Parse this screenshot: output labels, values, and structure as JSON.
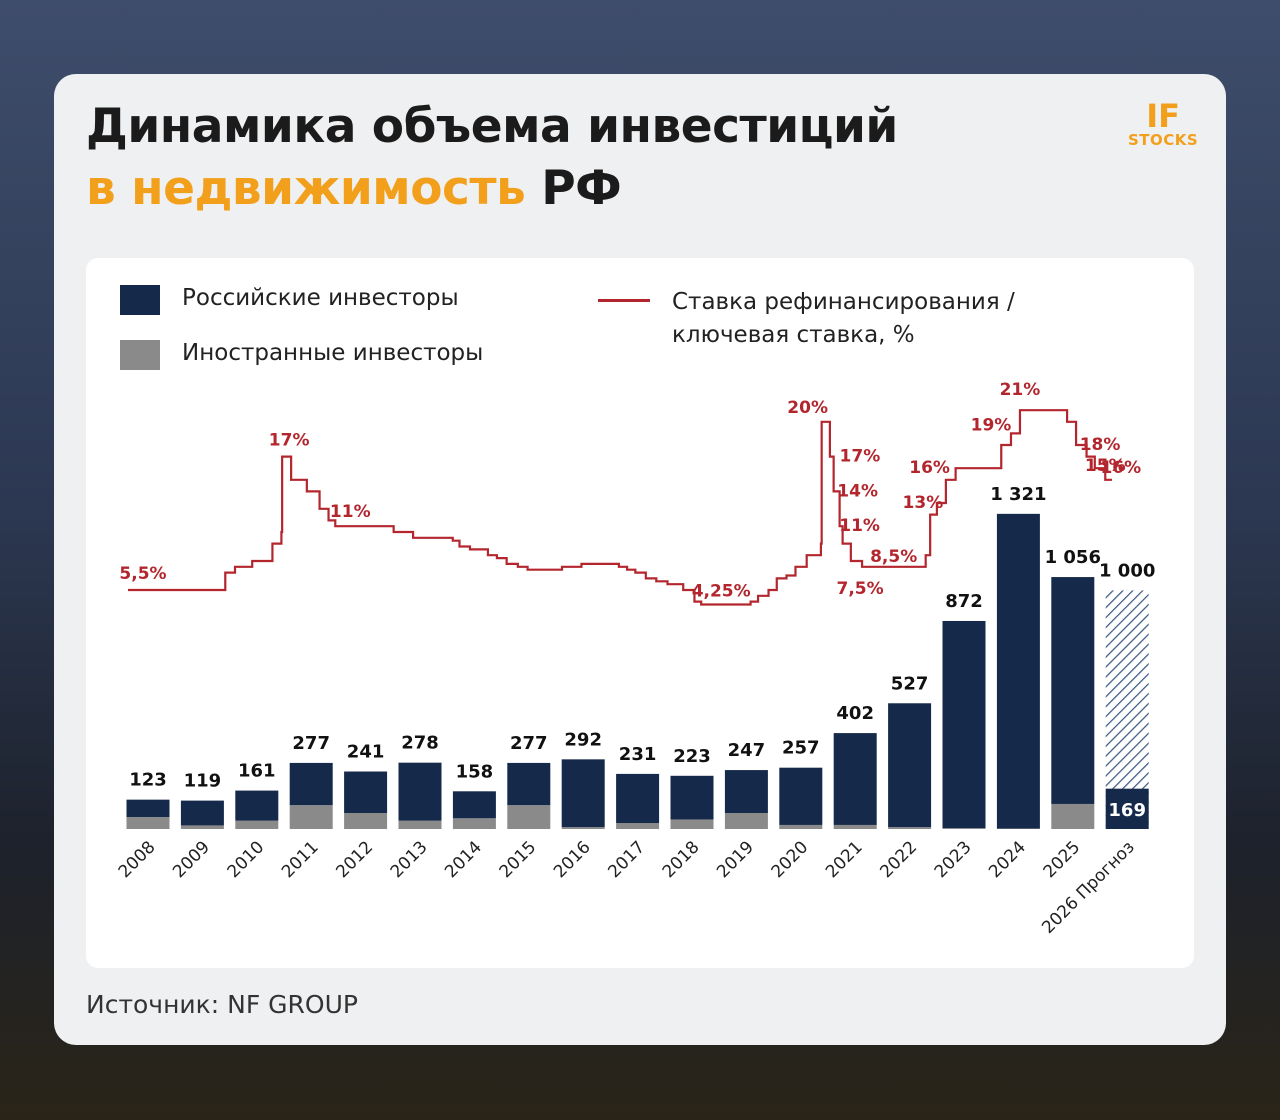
{
  "header": {
    "title_line1": "Динамика объема инвестиций",
    "title_accent": "в недвижимость",
    "title_rest": "РФ",
    "logo_top": "IF",
    "logo_bottom": "STOCKS"
  },
  "footer": {
    "source": "Источник: NF GROUP"
  },
  "chart_data": {
    "type": "bar+line",
    "categories": [
      "2008",
      "2009",
      "2010",
      "2011",
      "2012",
      "2013",
      "2014",
      "2015",
      "2016",
      "2017",
      "2018",
      "2019",
      "2020",
      "2021",
      "2022",
      "2023",
      "2024",
      "2025",
      "2026 Прогноз"
    ],
    "totals": [
      123,
      119,
      161,
      277,
      241,
      278,
      158,
      277,
      292,
      231,
      223,
      247,
      257,
      402,
      527,
      872,
      1321,
      1056,
      1000
    ],
    "value_labels": [
      "123",
      "119",
      "161",
      "277",
      "241",
      "278",
      "158",
      "277",
      "292",
      "231",
      "223",
      "247",
      "257",
      "402",
      "527",
      "872",
      "1 321",
      "1 056",
      "1 000"
    ],
    "hatch_color": "#3d5a85",
    "series": [
      {
        "name": "Российские инвесторы",
        "color": "#15294a",
        "values": [
          73,
          104,
          126,
          177,
          174,
          243,
          113,
          177,
          284,
          206,
          183,
          180,
          240,
          385,
          519,
          868,
          1319,
          951,
          169
        ]
      },
      {
        "name": "Иностранные инвесторы",
        "color": "#8a8a8a",
        "values": [
          50,
          15,
          35,
          100,
          67,
          35,
          45,
          100,
          8,
          25,
          40,
          67,
          17,
          17,
          8,
          4,
          2,
          105,
          null
        ]
      }
    ],
    "ylim": [
      0,
      1400
    ],
    "rate": {
      "name": "Ставка рефинансирования / ключевая ставка, %",
      "color": "#b3262d",
      "axis": "y2",
      "x": [
        2012.9,
        2014.2,
        2014.33,
        2014.56,
        2014.83,
        2014.95,
        2014.96,
        2015.08,
        2015.29,
        2015.46,
        2015.58,
        2015.67,
        2016.45,
        2016.71,
        2017.24,
        2017.33,
        2017.47,
        2017.71,
        2017.83,
        2017.96,
        2018.11,
        2018.24,
        2018.7,
        2018.96,
        2019.46,
        2019.57,
        2019.68,
        2019.82,
        2019.96,
        2020.11,
        2020.32,
        2020.47,
        2020.56,
        2021.22,
        2021.32,
        2021.46,
        2021.57,
        2021.7,
        2021.82,
        2021.97,
        2022.16,
        2022.17,
        2022.28,
        2022.33,
        2022.41,
        2022.45,
        2022.56,
        2022.71,
        2023.56,
        2023.62,
        2023.71,
        2023.83,
        2023.96,
        2024.57,
        2024.7,
        2024.82,
        2025.45,
        2025.57,
        2025.71,
        2025.82,
        2025.96
      ],
      "values": [
        5.5,
        7,
        7.5,
        8,
        9.5,
        10.5,
        17,
        15,
        14,
        12.5,
        11.5,
        11,
        10.5,
        10,
        9.75,
        9.25,
        9,
        8.5,
        8.25,
        7.75,
        7.5,
        7.25,
        7.5,
        7.75,
        7.5,
        7.25,
        7,
        6.5,
        6.25,
        6,
        5.5,
        4.5,
        4.25,
        4.5,
        5,
        5.5,
        6.5,
        6.75,
        7.5,
        8.5,
        9.5,
        20,
        17,
        14,
        11,
        9.5,
        8,
        7.5,
        8.5,
        12,
        13,
        15,
        16,
        18,
        19,
        21,
        20,
        18,
        17,
        16,
        15
      ],
      "value_labels": [
        "5,5%",
        null,
        null,
        null,
        null,
        null,
        "17%",
        null,
        null,
        null,
        null,
        "11%",
        null,
        null,
        null,
        null,
        null,
        null,
        null,
        null,
        null,
        null,
        null,
        null,
        null,
        null,
        null,
        null,
        null,
        null,
        null,
        null,
        "4,25%",
        null,
        null,
        null,
        null,
        null,
        null,
        null,
        null,
        "20%",
        "17%",
        "14%",
        "11%",
        null,
        null,
        "7,5%",
        "8,5%",
        null,
        "13%",
        null,
        "16%",
        null,
        "19%",
        "21%",
        null,
        "18%",
        null,
        "16%",
        "15%"
      ]
    },
    "xlim": [
      2012.9,
      2026.05
    ],
    "y2lim": [
      0,
      25
    ]
  }
}
